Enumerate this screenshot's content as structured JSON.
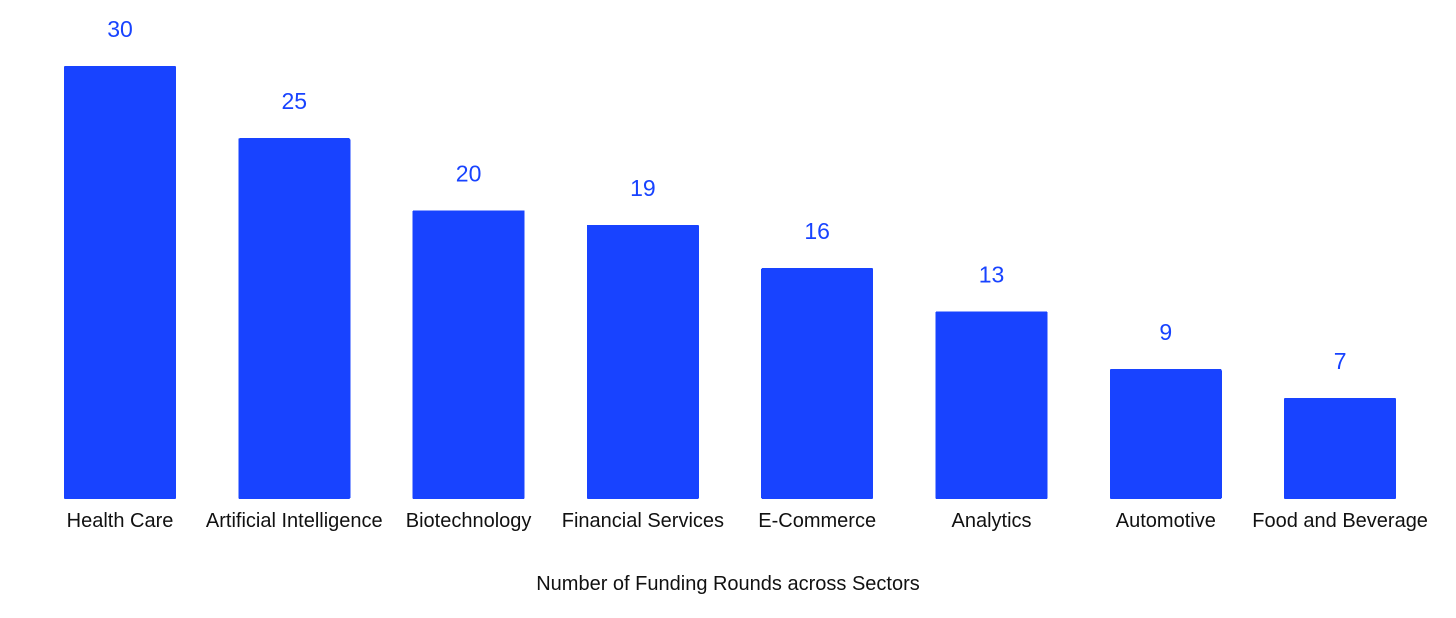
{
  "chart_data": {
    "type": "bar",
    "categories": [
      "Health Care",
      "Artificial Intelligence",
      "Biotechnology",
      "Financial Services",
      "E-Commerce",
      "Analytics",
      "Automotive",
      "Food and Beverage"
    ],
    "values": [
      30,
      25,
      20,
      19,
      16,
      13,
      9,
      7
    ],
    "title": "",
    "xlabel": "Number of Funding Rounds across Sectors",
    "ylabel": "",
    "ylim": [
      0,
      30
    ],
    "grid": false,
    "legend": "none",
    "data_labels": true,
    "colors": {
      "bar": "#1843ff",
      "value_label": "#1843ff",
      "text": "#111111"
    }
  }
}
